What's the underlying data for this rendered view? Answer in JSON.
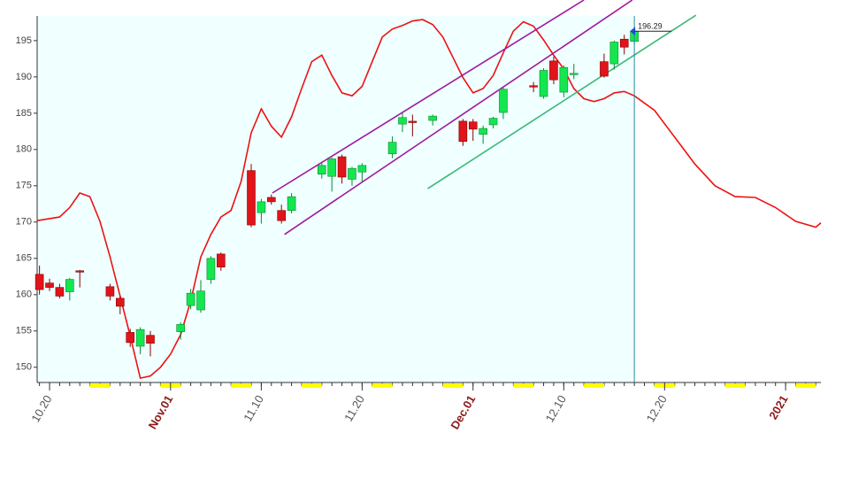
{
  "chart_data": {
    "type": "candlestick",
    "xlim": [
      -1.23,
      76.5
    ],
    "ylim": [
      147.9,
      198.4
    ],
    "yticks": [
      150,
      155,
      160,
      165,
      170,
      175,
      180,
      185,
      190,
      195
    ],
    "xticks": [
      {
        "value": 0,
        "label": "10.20"
      },
      {
        "value": 12,
        "label": "Nov.01"
      },
      {
        "value": 21,
        "label": "11.10"
      },
      {
        "value": 31,
        "label": "11.20"
      },
      {
        "value": 42,
        "label": "Dec.01"
      },
      {
        "value": 51,
        "label": "12.10"
      },
      {
        "value": 61,
        "label": "12.20"
      },
      {
        "value": 73,
        "label": "2021"
      }
    ],
    "xtick_colors": [
      "#555555",
      "#8b1a1a",
      "#555555",
      "#555555",
      "#8b1a1a",
      "#555555",
      "#555555",
      "#8b1a1a"
    ],
    "weekend_starts": [
      4,
      11,
      18,
      25,
      32,
      39,
      46,
      53,
      60,
      67,
      74
    ],
    "weekend_color": "#ffff00",
    "background": "#f0ffff",
    "x": [
      -1,
      0,
      1,
      2,
      3,
      6,
      7,
      8,
      9,
      10,
      13,
      14,
      15,
      16,
      17,
      20,
      21,
      22,
      23,
      24,
      27,
      28,
      29,
      30,
      31,
      34,
      35,
      36,
      38,
      41,
      42,
      43,
      44,
      45,
      48,
      49,
      50,
      51,
      52,
      55,
      56,
      57,
      58
    ],
    "open": [
      162.8,
      161.6,
      161.0,
      160.4,
      163.2,
      161.1,
      159.5,
      154.8,
      152.9,
      154.4,
      154.9,
      158.5,
      157.9,
      162.1,
      165.6,
      177.1,
      171.3,
      173.4,
      171.6,
      171.6,
      176.6,
      176.3,
      179.0,
      175.9,
      176.9,
      179.4,
      183.5,
      183.8,
      184.0,
      183.9,
      183.8,
      182.1,
      183.4,
      185.1,
      188.7,
      187.3,
      192.2,
      187.9,
      190.4,
      192.1,
      191.8,
      195.2,
      194.9
    ],
    "high": [
      164.0,
      162.2,
      161.5,
      162.3,
      163.4,
      161.5,
      159.8,
      155.3,
      155.5,
      155.0,
      156.2,
      160.8,
      162.0,
      165.3,
      165.8,
      178.0,
      173.2,
      173.8,
      172.4,
      174.0,
      178.2,
      178.9,
      179.3,
      177.6,
      178.1,
      181.8,
      185.0,
      184.8,
      184.8,
      184.2,
      184.2,
      183.3,
      184.5,
      188.5,
      189.3,
      191.2,
      192.8,
      191.6,
      191.8,
      193.2,
      195.0,
      195.8,
      196.5
    ],
    "low": [
      160.0,
      160.5,
      159.5,
      159.2,
      161.0,
      159.2,
      157.3,
      152.8,
      151.8,
      151.5,
      153.8,
      158.0,
      157.5,
      161.5,
      163.3,
      169.3,
      169.8,
      172.4,
      169.8,
      171.2,
      176.0,
      174.2,
      175.3,
      175.0,
      175.5,
      178.8,
      182.4,
      181.8,
      183.3,
      180.5,
      181.2,
      180.8,
      182.9,
      184.2,
      187.9,
      187.0,
      189.0,
      187.2,
      189.7,
      189.9,
      191.0,
      193.1,
      194.5
    ],
    "close": [
      160.7,
      161.0,
      159.8,
      162.1,
      163.2,
      159.8,
      158.4,
      153.4,
      155.2,
      153.3,
      155.9,
      160.2,
      160.5,
      165.0,
      163.8,
      169.6,
      172.8,
      172.8,
      170.2,
      173.5,
      177.8,
      178.7,
      176.2,
      177.4,
      177.8,
      181.0,
      184.4,
      183.8,
      184.6,
      181.1,
      182.8,
      182.9,
      184.3,
      188.3,
      188.7,
      190.9,
      189.6,
      191.3,
      190.4,
      190.1,
      194.8,
      194.1,
      196.29
    ],
    "colors": [
      "#e0141a",
      "#e0141a",
      "#e0141a",
      "#14e650",
      "#e0141a",
      "#e0141a",
      "#e0141a",
      "#e0141a",
      "#14e650",
      "#e0141a",
      "#14e650",
      "#14e650",
      "#14e650",
      "#14e650",
      "#e0141a",
      "#e0141a",
      "#14e650",
      "#e0141a",
      "#e0141a",
      "#14e650",
      "#14e650",
      "#14e650",
      "#e0141a",
      "#14e650",
      "#14e650",
      "#14e650",
      "#14e650",
      "#e0141a",
      "#14e650",
      "#e0141a",
      "#e0141a",
      "#14e650",
      "#14e650",
      "#14e650",
      "#e0141a",
      "#14e650",
      "#e0141a",
      "#14e650",
      "#14e650",
      "#e0141a",
      "#14e650",
      "#e0141a",
      "#14e650"
    ],
    "last_label": "196.29",
    "last_marker_color": "#1f4fd8",
    "cursor_color": "#2a8a9a",
    "overlay": {
      "color": "#ee1111",
      "x": [
        -1.23,
        1,
        2,
        3,
        4,
        5,
        6,
        7,
        8,
        9,
        10,
        11,
        12,
        13,
        14,
        15,
        16,
        17,
        18,
        19,
        20,
        21,
        22,
        23,
        24,
        25,
        26,
        27,
        28,
        29,
        30,
        31,
        32,
        33,
        34,
        35,
        36,
        37,
        38,
        39,
        40,
        41,
        42,
        43,
        44,
        45,
        46,
        47,
        48,
        49,
        50,
        51,
        52,
        53,
        54,
        55,
        56,
        57,
        58,
        60,
        62,
        64,
        66,
        68,
        70,
        72,
        74,
        76,
        76.5
      ],
      "values": [
        170.2,
        170.7,
        172.0,
        174.0,
        173.5,
        170.1,
        165.2,
        159.8,
        154.3,
        148.5,
        148.8,
        150.0,
        151.8,
        154.5,
        159.1,
        165.2,
        168.3,
        170.7,
        171.6,
        175.6,
        182.3,
        185.6,
        183.2,
        181.7,
        184.5,
        188.4,
        192.1,
        193.0,
        190.2,
        187.8,
        187.4,
        188.7,
        192.1,
        195.5,
        196.6,
        197.1,
        197.7,
        197.9,
        197.2,
        195.5,
        192.7,
        189.9,
        187.8,
        188.4,
        190.2,
        193.3,
        196.3,
        197.6,
        197.0,
        195.1,
        193.0,
        191.1,
        188.4,
        187.0,
        186.6,
        187.0,
        187.8,
        188.0,
        187.4,
        185.4,
        181.7,
        178.0,
        175.0,
        173.5,
        173.4,
        172.0,
        170.1,
        169.3,
        169.9
      ]
    },
    "trendlines": [
      {
        "color": "#a0189c",
        "x": [
          22.1,
          53.0
        ],
        "values": [
          174.0,
          200.6
        ]
      },
      {
        "color": "#a0189c",
        "x": [
          23.3,
          57.8
        ],
        "values": [
          168.3,
          200.6
        ]
      },
      {
        "color": "#3cb878",
        "x": [
          37.5,
          64.1
        ],
        "values": [
          174.6,
          198.5
        ]
      }
    ]
  }
}
